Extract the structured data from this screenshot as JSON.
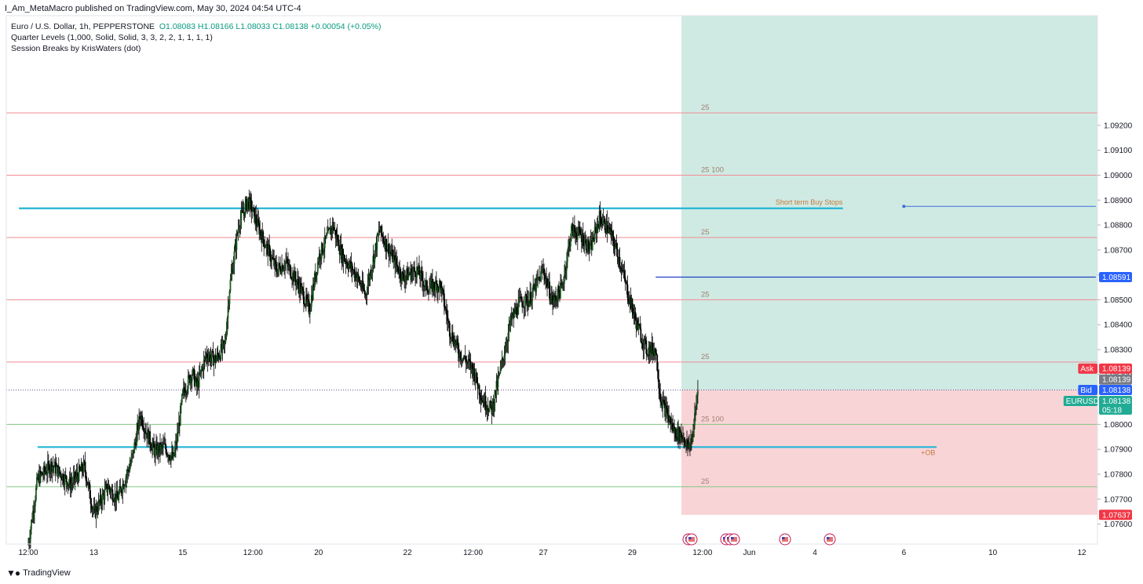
{
  "publisher_line": "I_Am_MetaMacro published on TradingView.com, May 30, 2024 04:54 UTC-4",
  "legend": {
    "symbol_desc": "Euro / U.S. Dollar, 1h, PEPPERSTONE",
    "ohlc": "O1.08083  H1.08166  L1.08033  C1.08138  +0.00054 (+0.05%)",
    "indicator_1": "Quarter Levels (1,000, Solid, Solid, 3, 3, 2, 2, 1, 1, 1, 1)",
    "indicator_2": "Session Breaks by KrisWaters (dot)"
  },
  "footer": {
    "logo_text": "TradingView"
  },
  "colors": {
    "up": "#089981",
    "down": "#000000",
    "candle_body_up": "#1b5e20",
    "quarter_red": "#f28b94",
    "quarter_green": "#81c784",
    "cyan_level": "#22b5d6",
    "blue_level": "#1e3fc7",
    "target_zone": "#cfeae3",
    "stop_zone": "#f9d4d7",
    "ask": "#f23645",
    "bid": "#2962ff",
    "price_tag": "#22ab94"
  },
  "chart_data": {
    "type": "candlestick",
    "symbol": "EURUSD",
    "timeframe": "1h",
    "ylim": [
      1.0752,
      1.0964
    ],
    "price_ticks": [
      1.092,
      1.091,
      1.09,
      1.089,
      1.088,
      1.087,
      1.086,
      1.085,
      1.084,
      1.083,
      1.082,
      1.081,
      1.08,
      1.079,
      1.078,
      1.077,
      1.076
    ],
    "price_tick_labels": [
      "1.09200",
      "1.09100",
      "1.09000",
      "1.08900",
      "1.08800",
      "1.08700",
      "1.08600",
      "1.08500",
      "1.08400",
      "1.08300",
      "1.08200",
      "1.08100",
      "1.08000",
      "1.07900",
      "1.07800",
      "1.07700",
      "1.07600"
    ],
    "time_axis_labels": [
      "12:00",
      "13",
      "15",
      "12:00",
      "20",
      "22",
      "12:00",
      "27",
      "29",
      "12:00",
      "Jun",
      "4",
      "6",
      "10",
      "12"
    ],
    "time_axis_index": [
      0,
      14,
      33,
      48,
      62,
      81,
      95,
      110,
      129,
      144,
      154,
      168,
      187,
      206,
      225
    ],
    "bars_total_span": 225,
    "quarter_levels": [
      {
        "price": 1.0925,
        "label": "25",
        "color": "red"
      },
      {
        "price": 1.09,
        "label": "25  100",
        "color": "red"
      },
      {
        "price": 1.0875,
        "label": "25",
        "color": "red"
      },
      {
        "price": 1.085,
        "label": "25",
        "color": "red"
      },
      {
        "price": 1.0825,
        "label": "25",
        "color": "red"
      },
      {
        "price": 1.08,
        "label": "25  100",
        "color": "green"
      },
      {
        "price": 1.0775,
        "label": "25",
        "color": "green"
      }
    ],
    "horizontal_lines": [
      {
        "price": 1.08867,
        "from": -2,
        "to": 174,
        "label": "Short term Buy Stops",
        "color": "cyan"
      },
      {
        "price": 1.07909,
        "from": 2,
        "to": 194,
        "label": "+OB",
        "color": "cyan"
      },
      {
        "price": 1.08591,
        "from": 134,
        "to": 228,
        "label": "",
        "color": "blue"
      },
      {
        "price": 1.08875,
        "from": 187,
        "to": 228,
        "label": "",
        "color": "blue_thin"
      }
    ],
    "position": {
      "entry": 1.08138,
      "target": 1.0964,
      "stop": 1.07637,
      "from": 139.5,
      "to": 228
    },
    "last_price_line": 1.08138,
    "price_badges": [
      {
        "price": 1.08591,
        "label": "",
        "value": "1.08591",
        "kind": "blue"
      },
      {
        "price": 1.08139,
        "label": "Ask",
        "value": "1.08139",
        "kind": "ask"
      },
      {
        "price": 1.08139,
        "label": "",
        "value": "1.08139",
        "kind": "grey"
      },
      {
        "price": 1.08138,
        "label": "Bid",
        "value": "1.08138",
        "kind": "bid"
      },
      {
        "price": 1.08138,
        "label": "EURUSD",
        "value": "1.08138",
        "countdown": "05:18",
        "kind": "last"
      },
      {
        "price": 1.07637,
        "label": "",
        "value": "1.07637",
        "kind": "stop"
      }
    ],
    "anchors": [
      [
        0,
        1.0752
      ],
      [
        2,
        1.0778
      ],
      [
        5,
        1.0784
      ],
      [
        9,
        1.0776
      ],
      [
        12,
        1.0783
      ],
      [
        14,
        1.0764
      ],
      [
        17,
        1.0775
      ],
      [
        19,
        1.077
      ],
      [
        22,
        1.0785
      ],
      [
        24,
        1.0804
      ],
      [
        25,
        1.0798
      ],
      [
        27,
        1.0789
      ],
      [
        29,
        1.0791
      ],
      [
        31,
        1.0786
      ],
      [
        32,
        1.0797
      ],
      [
        33,
        1.0812
      ],
      [
        35,
        1.0821
      ],
      [
        36,
        1.0815
      ],
      [
        38,
        1.0828
      ],
      [
        40,
        1.0826
      ],
      [
        42,
        1.0832
      ],
      [
        43,
        1.0855
      ],
      [
        45,
        1.0881
      ],
      [
        47,
        1.089
      ],
      [
        50,
        1.0875
      ],
      [
        53,
        1.0862
      ],
      [
        55,
        1.0865
      ],
      [
        58,
        1.0855
      ],
      [
        60,
        1.0846
      ],
      [
        62,
        1.0867
      ],
      [
        65,
        1.088
      ],
      [
        67,
        1.0868
      ],
      [
        70,
        1.086
      ],
      [
        72,
        1.0852
      ],
      [
        75,
        1.0878
      ],
      [
        77,
        1.087
      ],
      [
        80,
        1.0859
      ],
      [
        83,
        1.0862
      ],
      [
        85,
        1.0855
      ],
      [
        88,
        1.0856
      ],
      [
        90,
        1.0838
      ],
      [
        92,
        1.0829
      ],
      [
        95,
        1.0822
      ],
      [
        97,
        1.081
      ],
      [
        99,
        1.0806
      ],
      [
        101,
        1.0823
      ],
      [
        103,
        1.0841
      ],
      [
        105,
        1.0849
      ],
      [
        107,
        1.085
      ],
      [
        110,
        1.0862
      ],
      [
        112,
        1.0849
      ],
      [
        114,
        1.0855
      ],
      [
        116,
        1.0878
      ],
      [
        118,
        1.0876
      ],
      [
        120,
        1.087
      ],
      [
        122,
        1.0883
      ],
      [
        124,
        1.0878
      ],
      [
        126,
        1.0868
      ],
      [
        128,
        1.0853
      ],
      [
        130,
        1.084
      ],
      [
        132,
        1.083
      ],
      [
        134,
        1.083
      ],
      [
        135,
        1.0811
      ],
      [
        136,
        1.0806
      ],
      [
        138,
        1.0797
      ],
      [
        140,
        1.0795
      ],
      [
        141,
        1.079
      ],
      [
        142,
        1.0797
      ],
      [
        143,
        1.0814
      ]
    ]
  }
}
